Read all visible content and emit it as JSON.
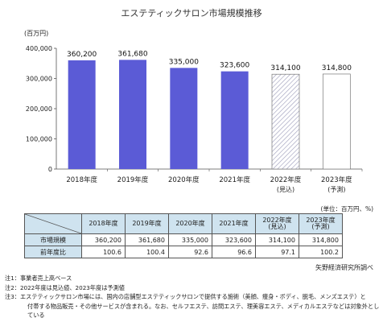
{
  "chart_data": {
    "type": "bar",
    "title": "エステティックサロン市場規模推移",
    "ylabel": "(百万円)",
    "ylim": [
      0,
      400000
    ],
    "yticks": [
      0,
      100000,
      200000,
      300000,
      400000
    ],
    "ytick_labels": [
      "0",
      "100,000",
      "200,000",
      "300,000",
      "400,000"
    ],
    "categories": [
      "2018年度",
      "2019年度",
      "2020年度",
      "2021年度",
      "2022年度",
      "2023年度"
    ],
    "category_sub": [
      "",
      "",
      "",
      "",
      "(見込)",
      "(予測)"
    ],
    "values": [
      360200,
      361680,
      335000,
      323600,
      314100,
      314800
    ],
    "value_labels": [
      "360,200",
      "361,680",
      "335,000",
      "323,600",
      "314,100",
      "314,800"
    ],
    "bar_styles": [
      "solid",
      "solid",
      "solid",
      "solid",
      "hatched",
      "outline"
    ],
    "colors": {
      "bar": "#5b5bd6",
      "hatch": "#9a9ab8",
      "axis": "#555555",
      "grid": "#e6e6e6"
    },
    "grid": false
  },
  "table": {
    "unit_note": "(単位：百万円、%)",
    "headers": [
      "2018年度",
      "2019年度",
      "2020年度",
      "2021年度",
      "2022年度\n(見込)",
      "2023年度\n(予測)"
    ],
    "rows": [
      {
        "label": "市場規模",
        "values": [
          "360,200",
          "361,680",
          "335,000",
          "323,600",
          "314,100",
          "314,800"
        ]
      },
      {
        "label": "前年度比",
        "values": [
          "100.6",
          "100.4",
          "92.6",
          "96.6",
          "97.1",
          "100.2"
        ]
      }
    ]
  },
  "source": "矢野経済研究所調べ",
  "notes": [
    "注1：事業者売上高ベース",
    "注2：2022年度は見込値、2023年度は予測値",
    "注3：エステティックサロン市場には、国内の店舗型エステティックサロンで提供する施術（美顔、痩身・ボディ、脱毛、メンズエステ）と",
    "付帯する物品販売・その他サービスが含まれる。なお、セルフエステ、訪問エステ、理美容エステ、メディカルエステなどは対象外としている"
  ]
}
